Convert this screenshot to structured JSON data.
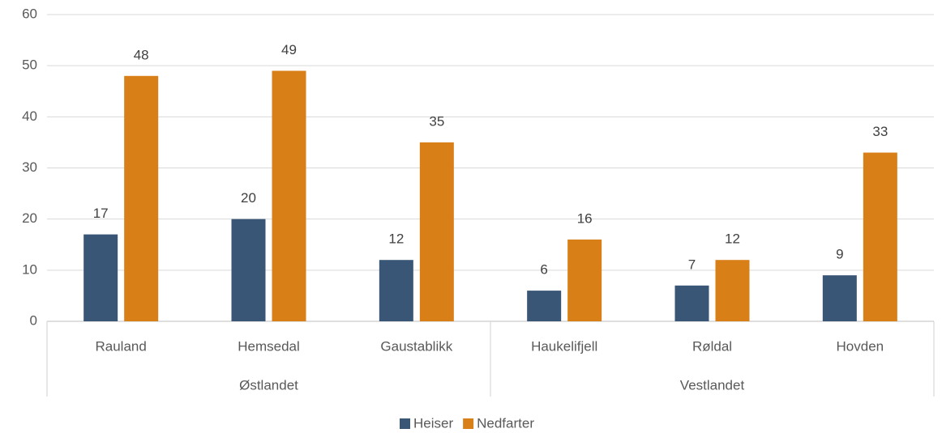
{
  "chart_data": {
    "type": "bar",
    "groups": [
      {
        "name": "Østlandet",
        "categories": [
          "Rauland",
          "Hemsedal",
          "Gaustablikk"
        ]
      },
      {
        "name": "Vestlandet",
        "categories": [
          "Haukelifjell",
          "Røldal",
          "Hovden"
        ]
      }
    ],
    "series": [
      {
        "name": "Heiser",
        "color": "#3a5676",
        "values": [
          17,
          20,
          12,
          6,
          7,
          9
        ]
      },
      {
        "name": "Nedfarter",
        "color": "#d97f18",
        "values": [
          48,
          49,
          35,
          16,
          12,
          33
        ]
      }
    ],
    "ylim": [
      0,
      60
    ],
    "yticks": [
      0,
      10,
      20,
      30,
      40,
      50,
      60
    ],
    "grid": true,
    "legend": "bottom"
  }
}
